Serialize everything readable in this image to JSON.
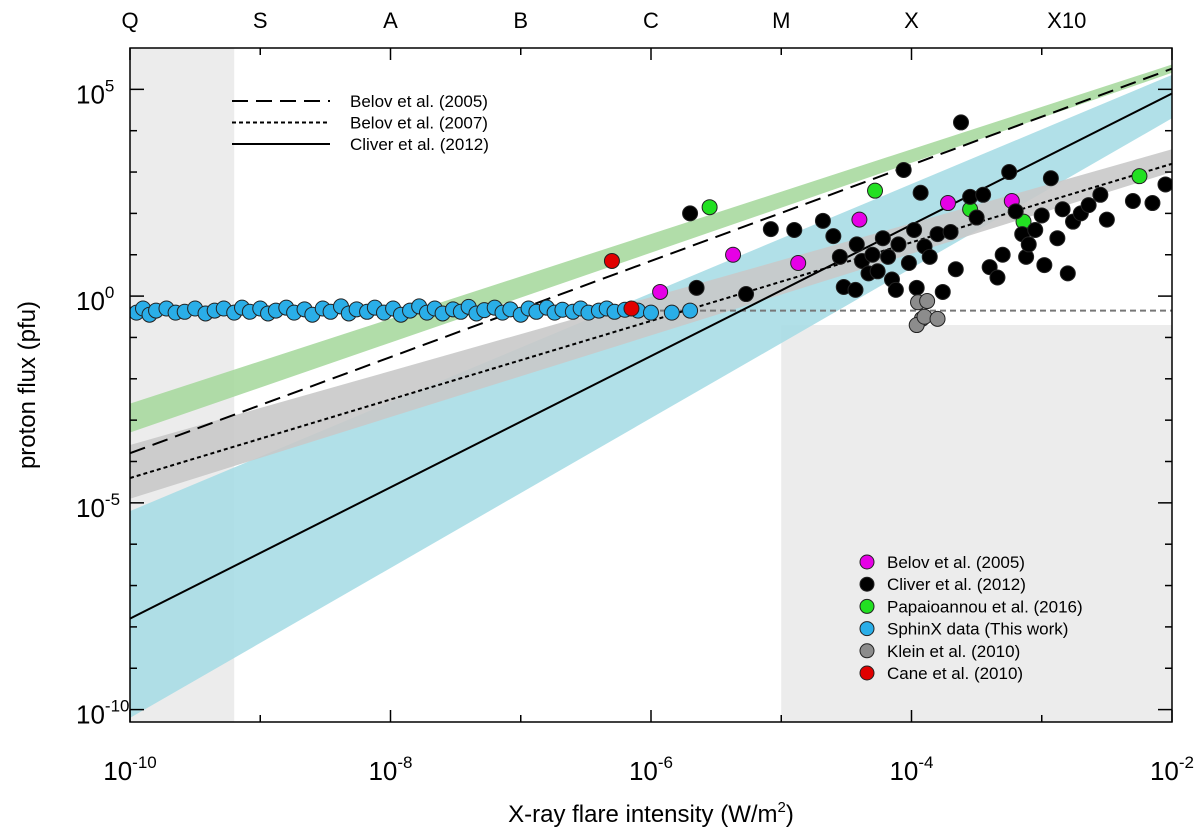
{
  "chart_data": {
    "type": "scatter",
    "xlabel": "X-ray flare intensity (W/m",
    "xlabel_sup": "2",
    "xlabel_end": ")",
    "ylabel": "proton flux (pfu)",
    "x_scale": "log10",
    "y_scale": "log10",
    "xlim_log10": [
      -10,
      -2
    ],
    "ylim_log10": [
      -10.3,
      6
    ],
    "x_tick_labels": [
      {
        "base": "10",
        "exp": "-10",
        "log": -10
      },
      {
        "base": "10",
        "exp": "-8",
        "log": -8
      },
      {
        "base": "10",
        "exp": "-6",
        "log": -6
      },
      {
        "base": "10",
        "exp": "-4",
        "log": -4
      },
      {
        "base": "10",
        "exp": "-2",
        "log": -2
      }
    ],
    "y_tick_labels": [
      {
        "base": "10",
        "exp": "5",
        "log": 5
      },
      {
        "base": "10",
        "exp": "0",
        "log": 0
      },
      {
        "base": "10",
        "exp": "-5",
        "log": -5
      },
      {
        "base": "10",
        "exp": "-10",
        "log": -10
      }
    ],
    "flare_classes": [
      {
        "label": "Q",
        "log": -10
      },
      {
        "label": "S",
        "log": -9
      },
      {
        "label": "A",
        "log": -8
      },
      {
        "label": "B",
        "log": -7
      },
      {
        "label": "C",
        "log": -6
      },
      {
        "label": "M",
        "log": -5
      },
      {
        "label": "X",
        "log": -4
      },
      {
        "label": "X10",
        "log": -3
      }
    ],
    "line_legend": [
      {
        "name": "Belov et al. (2005)",
        "style": "dashed"
      },
      {
        "name": "Belov et al. (2007)",
        "style": "dotted"
      },
      {
        "name": "Cliver et al. (2012)",
        "style": "solid"
      }
    ],
    "fit_lines": [
      {
        "name": "Belov et al. (2005)",
        "style": "dashed",
        "x": [
          -10,
          -2
        ],
        "y": [
          -3.8,
          5.5
        ]
      },
      {
        "name": "Belov et al. (2007)",
        "style": "dotted",
        "x": [
          -10,
          -2
        ],
        "y": [
          -4.4,
          3.2
        ]
      },
      {
        "name": "Cliver et al. (2012)",
        "style": "solid",
        "x": [
          -10,
          -2
        ],
        "y": [
          -7.8,
          4.9
        ]
      }
    ],
    "bands": [
      {
        "name": "Belov et al. (2005) range",
        "color": "#a8d9a0",
        "x": [
          -10,
          -2
        ],
        "y_low": [
          -3.3,
          5.4
        ],
        "y_high": [
          -2.6,
          5.6
        ]
      },
      {
        "name": "Cliver et al. (2012) range",
        "color": "#a8dde6",
        "x": [
          -10,
          -2
        ],
        "y_low": [
          -10.2,
          4.3
        ],
        "y_high": [
          -5.2,
          5.35
        ]
      },
      {
        "name": "Belov et al. (2007) range",
        "color": "#c9c9c9",
        "x": [
          -10,
          -2
        ],
        "y_low": [
          -4.9,
          3.0
        ],
        "y_high": [
          -3.6,
          3.55
        ]
      }
    ],
    "shaded_regions": [
      {
        "name": "sub-threshold flux region",
        "x": [
          -10,
          -9.2
        ],
        "y": [
          -10.3,
          6
        ]
      },
      {
        "name": "below background region",
        "x": [
          -5,
          -2
        ],
        "y": [
          -10.3,
          -0.7
        ]
      }
    ],
    "background_level_log10": -0.35,
    "series": [
      {
        "name": "Belov et al. (2005)",
        "color": "#e600e6",
        "points": [
          [
            -5.93,
            0.1
          ],
          [
            -5.37,
            1.0
          ],
          [
            -4.87,
            0.8
          ],
          [
            -4.4,
            1.85
          ],
          [
            -3.72,
            2.25
          ],
          [
            -3.23,
            2.3
          ]
        ]
      },
      {
        "name": "Cliver et al. (2012)",
        "color": "#000000",
        "points": [
          [
            -5.7,
            2.0
          ],
          [
            -5.65,
            0.2
          ],
          [
            -5.27,
            0.05
          ],
          [
            -5.08,
            1.62
          ],
          [
            -4.9,
            1.6
          ],
          [
            -4.68,
            1.82
          ],
          [
            -4.6,
            1.45
          ],
          [
            -4.55,
            0.95
          ],
          [
            -4.52,
            0.22
          ],
          [
            -4.43,
            0.15
          ],
          [
            -4.42,
            1.25
          ],
          [
            -4.38,
            0.85
          ],
          [
            -4.33,
            0.55
          ],
          [
            -4.3,
            1.0
          ],
          [
            -4.26,
            0.6
          ],
          [
            -4.22,
            1.4
          ],
          [
            -4.18,
            0.95
          ],
          [
            -4.15,
            0.4
          ],
          [
            -4.12,
            0.15
          ],
          [
            -4.1,
            1.25
          ],
          [
            -4.06,
            3.05
          ],
          [
            -4.02,
            0.8
          ],
          [
            -3.98,
            1.6
          ],
          [
            -3.96,
            0.2
          ],
          [
            -3.93,
            2.5
          ],
          [
            -3.9,
            1.2
          ],
          [
            -3.86,
            0.95
          ],
          [
            -3.8,
            1.5
          ],
          [
            -3.76,
            0.1
          ],
          [
            -3.7,
            1.55
          ],
          [
            -3.66,
            0.65
          ],
          [
            -3.62,
            4.2
          ],
          [
            -3.55,
            2.4
          ],
          [
            -3.5,
            1.9
          ],
          [
            -3.45,
            2.45
          ],
          [
            -3.4,
            0.7
          ],
          [
            -3.34,
            0.45
          ],
          [
            -3.3,
            1.0
          ],
          [
            -3.25,
            3.0
          ],
          [
            -3.2,
            2.05
          ],
          [
            -3.15,
            1.5
          ],
          [
            -3.12,
            0.95
          ],
          [
            -3.1,
            1.25
          ],
          [
            -3.05,
            1.6
          ],
          [
            -3.0,
            1.95
          ],
          [
            -2.98,
            0.75
          ],
          [
            -2.93,
            2.85
          ],
          [
            -2.88,
            1.4
          ],
          [
            -2.84,
            2.1
          ],
          [
            -2.8,
            0.55
          ],
          [
            -2.76,
            1.8
          ],
          [
            -2.7,
            2.0
          ],
          [
            -2.64,
            2.2
          ],
          [
            -2.55,
            2.45
          ],
          [
            -2.5,
            1.85
          ],
          [
            -2.3,
            2.3
          ],
          [
            -2.15,
            2.25
          ],
          [
            -2.05,
            2.7
          ]
        ]
      },
      {
        "name": "Papaioannou et al. (2016)",
        "color": "#22e022",
        "points": [
          [
            -5.55,
            2.15
          ],
          [
            -4.28,
            2.55
          ],
          [
            -3.55,
            2.1
          ],
          [
            -3.14,
            1.8
          ],
          [
            -2.25,
            2.9
          ]
        ]
      },
      {
        "name": "SphinX data (This work)",
        "color": "#2aaee8",
        "points": [
          [
            -9.95,
            -0.4
          ],
          [
            -9.9,
            -0.3
          ],
          [
            -9.85,
            -0.45
          ],
          [
            -9.8,
            -0.35
          ],
          [
            -9.72,
            -0.3
          ],
          [
            -9.65,
            -0.4
          ],
          [
            -9.58,
            -0.38
          ],
          [
            -9.5,
            -0.3
          ],
          [
            -9.42,
            -0.42
          ],
          [
            -9.35,
            -0.35
          ],
          [
            -9.28,
            -0.3
          ],
          [
            -9.2,
            -0.4
          ],
          [
            -9.14,
            -0.28
          ],
          [
            -9.08,
            -0.38
          ],
          [
            -9.0,
            -0.3
          ],
          [
            -8.94,
            -0.42
          ],
          [
            -8.88,
            -0.35
          ],
          [
            -8.8,
            -0.28
          ],
          [
            -8.74,
            -0.4
          ],
          [
            -8.66,
            -0.32
          ],
          [
            -8.6,
            -0.45
          ],
          [
            -8.52,
            -0.3
          ],
          [
            -8.46,
            -0.38
          ],
          [
            -8.38,
            -0.25
          ],
          [
            -8.32,
            -0.42
          ],
          [
            -8.26,
            -0.32
          ],
          [
            -8.18,
            -0.38
          ],
          [
            -8.12,
            -0.28
          ],
          [
            -8.05,
            -0.4
          ],
          [
            -7.98,
            -0.3
          ],
          [
            -7.92,
            -0.45
          ],
          [
            -7.85,
            -0.35
          ],
          [
            -7.78,
            -0.25
          ],
          [
            -7.72,
            -0.4
          ],
          [
            -7.66,
            -0.3
          ],
          [
            -7.6,
            -0.42
          ],
          [
            -7.52,
            -0.32
          ],
          [
            -7.46,
            -0.38
          ],
          [
            -7.4,
            -0.26
          ],
          [
            -7.34,
            -0.42
          ],
          [
            -7.28,
            -0.34
          ],
          [
            -7.2,
            -0.28
          ],
          [
            -7.14,
            -0.4
          ],
          [
            -7.08,
            -0.32
          ],
          [
            -7.0,
            -0.45
          ],
          [
            -6.94,
            -0.3
          ],
          [
            -6.88,
            -0.38
          ],
          [
            -6.8,
            -0.28
          ],
          [
            -6.74,
            -0.4
          ],
          [
            -6.68,
            -0.33
          ],
          [
            -6.6,
            -0.38
          ],
          [
            -6.54,
            -0.3
          ],
          [
            -6.48,
            -0.4
          ],
          [
            -6.4,
            -0.35
          ],
          [
            -6.34,
            -0.3
          ],
          [
            -6.28,
            -0.38
          ],
          [
            -6.2,
            -0.33
          ],
          [
            -6.1,
            -0.35
          ],
          [
            -6.0,
            -0.4
          ],
          [
            -5.84,
            -0.4
          ],
          [
            -5.7,
            -0.35
          ]
        ]
      },
      {
        "name": "Klein et al. (2010)",
        "color": "#8c8c8c",
        "points": [
          [
            -3.95,
            -0.15
          ],
          [
            -3.88,
            -0.12
          ],
          [
            -3.92,
            -0.55
          ],
          [
            -3.96,
            -0.7
          ],
          [
            -3.9,
            -0.5
          ],
          [
            -3.8,
            -0.55
          ]
        ]
      },
      {
        "name": "Cane et al. (2010)",
        "color": "#e00000",
        "points": [
          [
            -6.3,
            0.85
          ],
          [
            -6.15,
            -0.3
          ]
        ]
      }
    ]
  }
}
